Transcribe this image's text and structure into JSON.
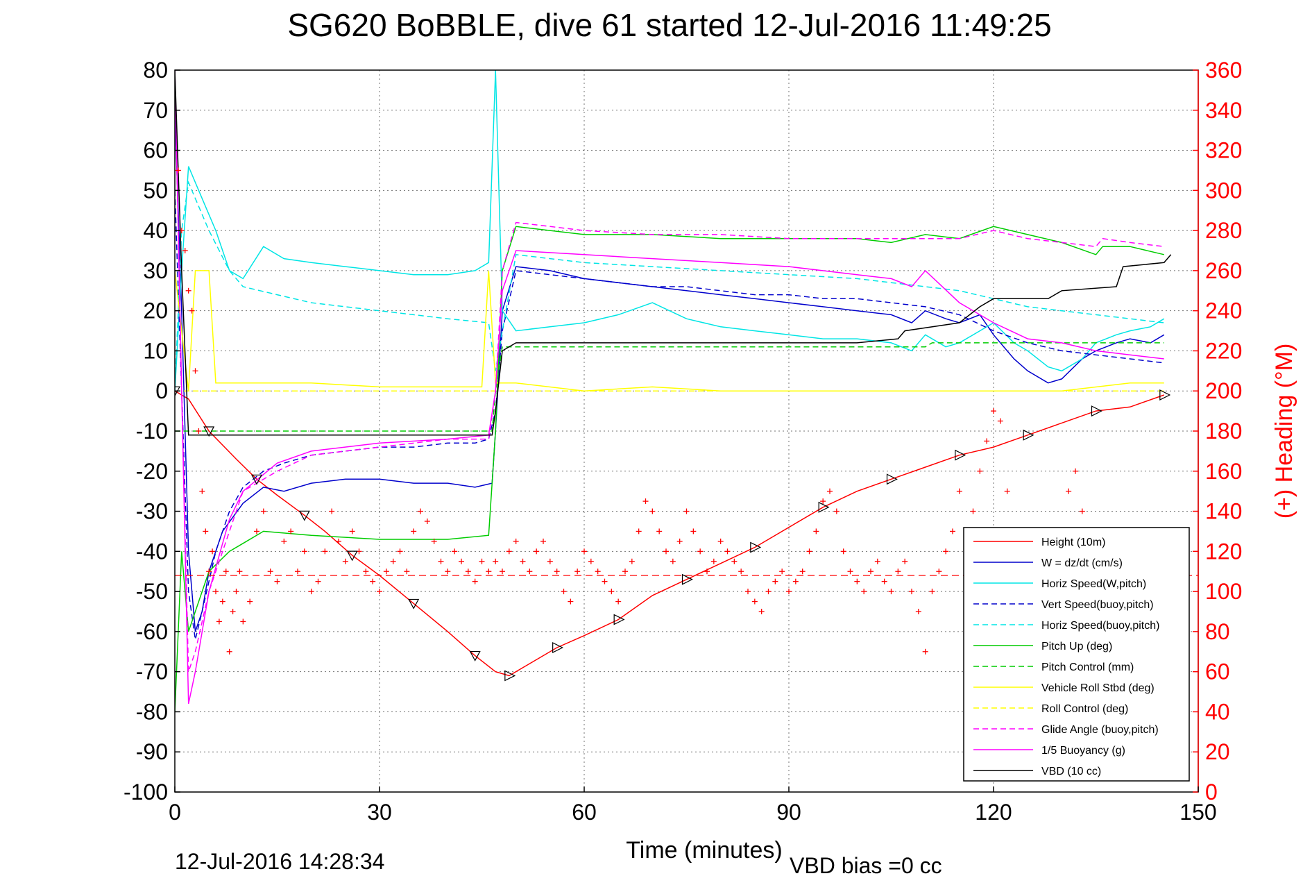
{
  "chart_data": {
    "type": "line",
    "title": "SG620 BoBBLE, dive 61 started 12-Jul-2016 11:49:25",
    "xlabel": "Time (minutes)",
    "ylabel": "",
    "y2label": "(+) Heading (°M)",
    "footer_left": "12-Jul-2016 14:28:34",
    "footer_right": "VBD bias =0 cc",
    "xlim": [
      0,
      150
    ],
    "ylim": [
      -100,
      80
    ],
    "y2lim": [
      0,
      360
    ],
    "x_ticks": [
      "0",
      "30",
      "60",
      "90",
      "120",
      "150"
    ],
    "y_ticks": [
      "80",
      "70",
      "60",
      "50",
      "40",
      "30",
      "20",
      "10",
      "0",
      "-10",
      "-20",
      "-30",
      "-40",
      "-50",
      "-60",
      "-70",
      "-80",
      "-90",
      "-100"
    ],
    "y2_ticks": [
      "360",
      "340",
      "320",
      "300",
      "280",
      "260",
      "240",
      "220",
      "200",
      "180",
      "160",
      "140",
      "120",
      "100",
      "80",
      "60",
      "40",
      "20",
      "0"
    ],
    "grid": true,
    "legend_position": "bottom-right",
    "colors": {
      "red": "#ff0000",
      "blue": "#0000cc",
      "cyan": "#00e5e5",
      "green": "#00cc00",
      "yellow": "#ffff00",
      "magenta": "#ff00ff",
      "black": "#000000"
    },
    "series": [
      {
        "name": "Height (10m)",
        "color": "#ff0000",
        "dash": "solid",
        "x": [
          0,
          2,
          5,
          9,
          12,
          15,
          19,
          22,
          26,
          30,
          35,
          40,
          44,
          47,
          49,
          52,
          56,
          60,
          65,
          70,
          75,
          80,
          85,
          90,
          95,
          100,
          105,
          110,
          115,
          120,
          125,
          130,
          135,
          140,
          145
        ],
        "y": [
          0,
          -2,
          -10,
          -17,
          -22,
          -26,
          -31,
          -35,
          -41,
          -46,
          -53,
          -60,
          -66,
          -70,
          -71,
          -68,
          -64,
          -61,
          -57,
          -51,
          -47,
          -43,
          -39,
          -34,
          -29,
          -25,
          -22,
          -19,
          -16,
          -14,
          -11,
          -8,
          -5,
          -4,
          -1
        ]
      },
      {
        "name": "W = dz/dt (cm/s)",
        "color": "#0000cc",
        "dash": "solid",
        "x": [
          0,
          1,
          2,
          3,
          4,
          5,
          7,
          10,
          13,
          16,
          20,
          25,
          30,
          35,
          40,
          44,
          46.5,
          47,
          48,
          50,
          55,
          60,
          65,
          70,
          75,
          80,
          85,
          90,
          95,
          100,
          105,
          108,
          110,
          113,
          115,
          118,
          120,
          123,
          125,
          128,
          130,
          133,
          135,
          138,
          140,
          143,
          145
        ],
        "y": [
          70,
          20,
          -40,
          -60,
          -55,
          -45,
          -35,
          -28,
          -24,
          -25,
          -23,
          -22,
          -22,
          -23,
          -23,
          -24,
          -23,
          -10,
          20,
          31,
          30,
          28,
          27,
          26,
          25,
          24,
          23,
          22,
          21,
          20,
          19,
          17,
          20,
          18,
          17,
          19,
          14,
          8,
          5,
          2,
          3,
          8,
          10,
          12,
          13,
          12,
          14
        ]
      },
      {
        "name": "Horiz Speed(W,pitch)",
        "color": "#00e5e5",
        "dash": "solid",
        "x": [
          0,
          1,
          2,
          3,
          4,
          6,
          8,
          10,
          13,
          16,
          20,
          25,
          30,
          35,
          40,
          44,
          46,
          47,
          48,
          50,
          55,
          60,
          65,
          70,
          75,
          80,
          85,
          90,
          95,
          100,
          105,
          108,
          110,
          113,
          115,
          118,
          120,
          123,
          125,
          128,
          130,
          133,
          135,
          138,
          140,
          143,
          145
        ],
        "y": [
          0,
          30,
          56,
          52,
          48,
          40,
          30,
          28,
          36,
          33,
          32,
          31,
          30,
          29,
          29,
          30,
          32,
          80,
          20,
          15,
          16,
          17,
          19,
          22,
          18,
          16,
          15,
          14,
          13,
          13,
          12,
          10,
          14,
          11,
          12,
          15,
          17,
          12,
          10,
          6,
          5,
          8,
          12,
          14,
          15,
          16,
          18
        ]
      },
      {
        "name": "Vert Speed(buoy,pitch)",
        "color": "#0000cc",
        "dash": "dashed",
        "x": [
          0,
          1,
          2,
          3,
          4,
          6,
          8,
          10,
          13,
          16,
          20,
          25,
          30,
          35,
          40,
          44,
          46,
          47,
          48,
          50,
          55,
          60,
          65,
          70,
          75,
          80,
          85,
          90,
          95,
          100,
          105,
          110,
          115,
          120,
          125,
          130,
          135,
          140,
          145
        ],
        "y": [
          50,
          0,
          -50,
          -62,
          -55,
          -40,
          -30,
          -24,
          -20,
          -18,
          -16,
          -15,
          -14,
          -14,
          -13,
          -13,
          -12,
          -5,
          15,
          30,
          29,
          28,
          27,
          26,
          26,
          25,
          24,
          24,
          23,
          23,
          22,
          21,
          19,
          15,
          12,
          10,
          9,
          8,
          7
        ]
      },
      {
        "name": "Horiz Speed(buoy,pitch)",
        "color": "#00e5e5",
        "dash": "dashed",
        "x": [
          0,
          1,
          2,
          3,
          5,
          8,
          10,
          15,
          20,
          25,
          30,
          35,
          40,
          46,
          47,
          48,
          50,
          55,
          60,
          70,
          80,
          90,
          100,
          105,
          110,
          115,
          120,
          125,
          130,
          135,
          140,
          145
        ],
        "y": [
          0,
          40,
          52,
          48,
          40,
          30,
          26,
          24,
          22,
          21,
          20,
          19,
          18,
          17,
          5,
          15,
          34,
          33,
          32,
          31,
          30,
          29,
          28,
          27,
          26,
          25,
          23,
          21,
          20,
          19,
          18,
          17
        ]
      },
      {
        "name": "Pitch Up (deg)",
        "color": "#00cc00",
        "dash": "solid",
        "x": [
          0,
          1,
          2,
          3,
          5,
          8,
          10,
          13,
          20,
          30,
          40,
          46,
          47,
          48,
          50,
          55,
          60,
          70,
          80,
          90,
          100,
          105,
          110,
          115,
          120,
          125,
          130,
          135,
          136,
          140,
          145
        ],
        "y": [
          -80,
          -40,
          -60,
          -55,
          -45,
          -40,
          -38,
          -35,
          -36,
          -37,
          -37,
          -36,
          -10,
          30,
          41,
          40,
          39,
          39,
          38,
          38,
          38,
          37,
          39,
          38,
          41,
          39,
          37,
          34,
          36,
          36,
          34
        ]
      },
      {
        "name": "Pitch Control (mm)",
        "color": "#00cc00",
        "dash": "dashed",
        "x": [
          0,
          1,
          2,
          5,
          46.5,
          47,
          48,
          110,
          111,
          145
        ],
        "y": [
          -10,
          -10,
          -10,
          -10,
          -10,
          0,
          11,
          11,
          12,
          12
        ]
      },
      {
        "name": "Vehicle Roll Stbd (deg)",
        "color": "#ffff00",
        "dash": "solid",
        "x": [
          0,
          2,
          3,
          5,
          6,
          10,
          20,
          30,
          45,
          46,
          47,
          50,
          60,
          70,
          80,
          90,
          100,
          110,
          120,
          130,
          140,
          145
        ],
        "y": [
          30,
          0,
          30,
          30,
          2,
          2,
          2,
          1,
          1,
          30,
          2,
          2,
          0,
          1,
          0,
          0,
          0,
          0,
          0,
          0,
          2,
          2
        ]
      },
      {
        "name": "Roll Control (deg)",
        "color": "#ffff00",
        "dash": "dashed",
        "x": [
          0,
          5,
          10,
          20,
          30,
          40,
          46,
          48,
          60,
          80,
          100,
          120,
          130,
          140,
          145
        ],
        "y": [
          0,
          0,
          0,
          0,
          0,
          0,
          0,
          0,
          0,
          0,
          0,
          0,
          0,
          0,
          0
        ]
      },
      {
        "name": "Glide Angle (buoy,pitch)",
        "color": "#ff00ff",
        "dash": "dashed",
        "x": [
          0,
          1,
          2,
          3,
          5,
          8,
          10,
          15,
          20,
          30,
          40,
          46,
          47,
          48,
          50,
          55,
          60,
          70,
          80,
          90,
          100,
          110,
          115,
          120,
          125,
          130,
          135,
          136,
          140,
          145
        ],
        "y": [
          80,
          0,
          -70,
          -65,
          -50,
          -35,
          -25,
          -20,
          -16,
          -14,
          -12,
          -12,
          0,
          30,
          42,
          41,
          40,
          39,
          39,
          38,
          38,
          38,
          38,
          40,
          38,
          37,
          36,
          38,
          37,
          36
        ]
      },
      {
        "name": "1/5 Buoyancy (g)",
        "color": "#ff00ff",
        "dash": "solid",
        "x": [
          0,
          1,
          2,
          3,
          5,
          8,
          10,
          15,
          20,
          30,
          40,
          46,
          47,
          48,
          50,
          60,
          70,
          80,
          90,
          100,
          105,
          108,
          110,
          115,
          120,
          125,
          130,
          135,
          140,
          145
        ],
        "y": [
          80,
          0,
          -78,
          -70,
          -50,
          -32,
          -25,
          -18,
          -15,
          -13,
          -12,
          -11,
          0,
          25,
          35,
          34,
          33,
          32,
          31,
          29,
          28,
          26,
          30,
          22,
          17,
          13,
          12,
          10,
          9,
          8
        ]
      },
      {
        "name": "VBD (10 cc)",
        "color": "#000000",
        "dash": "solid",
        "x": [
          0,
          1,
          2,
          3,
          46.5,
          47,
          48,
          50,
          100,
          106,
          107,
          115,
          118,
          120,
          128,
          130,
          138,
          139,
          145,
          146
        ],
        "y": [
          80,
          30,
          -11,
          -11,
          -11,
          -5,
          10,
          12,
          12,
          13,
          15,
          17,
          21,
          23,
          23,
          25,
          26,
          31,
          32,
          34
        ]
      }
    ],
    "heading": {
      "name": "(+) Heading (°M)",
      "color": "#ff0000",
      "marker": "+",
      "target": 108,
      "x": [
        0.5,
        1,
        1.5,
        2,
        2.5,
        3,
        3.5,
        4,
        4.5,
        5,
        5.5,
        6,
        6.5,
        7,
        7.5,
        8,
        8.5,
        9,
        9.5,
        10,
        11,
        12,
        13,
        14,
        15,
        16,
        17,
        18,
        19,
        20,
        21,
        22,
        23,
        24,
        25,
        26,
        27,
        28,
        29,
        30,
        31,
        32,
        33,
        34,
        35,
        36,
        37,
        38,
        39,
        40,
        41,
        42,
        43,
        44,
        45,
        46,
        47,
        48,
        49,
        50,
        51,
        52,
        53,
        54,
        55,
        56,
        57,
        58,
        59,
        60,
        61,
        62,
        63,
        64,
        65,
        66,
        67,
        68,
        69,
        70,
        71,
        72,
        73,
        74,
        75,
        76,
        77,
        78,
        79,
        80,
        81,
        82,
        83,
        84,
        85,
        86,
        87,
        88,
        89,
        90,
        91,
        92,
        93,
        94,
        95,
        96,
        97,
        98,
        99,
        100,
        101,
        102,
        103,
        104,
        105,
        106,
        107,
        108,
        109,
        110,
        111,
        112,
        113,
        114,
        115,
        116,
        117,
        118,
        119,
        120,
        121,
        122,
        123,
        124,
        125,
        126,
        127,
        128,
        129,
        130,
        131,
        132,
        133,
        134,
        135,
        136,
        137,
        138,
        139,
        140
      ],
      "y": [
        310,
        280,
        270,
        250,
        240,
        210,
        180,
        150,
        130,
        110,
        120,
        100,
        85,
        95,
        110,
        70,
        90,
        100,
        110,
        85,
        95,
        130,
        140,
        110,
        105,
        125,
        130,
        110,
        120,
        100,
        105,
        120,
        140,
        125,
        115,
        130,
        120,
        110,
        105,
        100,
        110,
        115,
        120,
        110,
        130,
        140,
        135,
        125,
        115,
        110,
        120,
        115,
        110,
        105,
        115,
        110,
        115,
        110,
        120,
        125,
        115,
        110,
        120,
        125,
        115,
        110,
        100,
        95,
        110,
        120,
        115,
        110,
        105,
        100,
        95,
        110,
        115,
        130,
        145,
        140,
        130,
        120,
        115,
        125,
        140,
        130,
        120,
        110,
        115,
        125,
        120,
        115,
        110,
        100,
        95,
        90,
        100,
        105,
        110,
        100,
        105,
        110,
        120,
        130,
        145,
        150,
        140,
        120,
        110,
        105,
        100,
        110,
        115,
        105,
        100,
        110,
        115,
        100,
        90,
        70,
        100,
        110,
        120,
        130,
        150,
        120,
        140,
        160,
        175,
        190,
        185,
        150,
        130,
        110,
        100,
        95,
        100,
        110,
        120,
        130,
        150,
        160,
        140,
        120,
        100,
        110,
        120,
        125,
        130,
        125
      ]
    }
  }
}
